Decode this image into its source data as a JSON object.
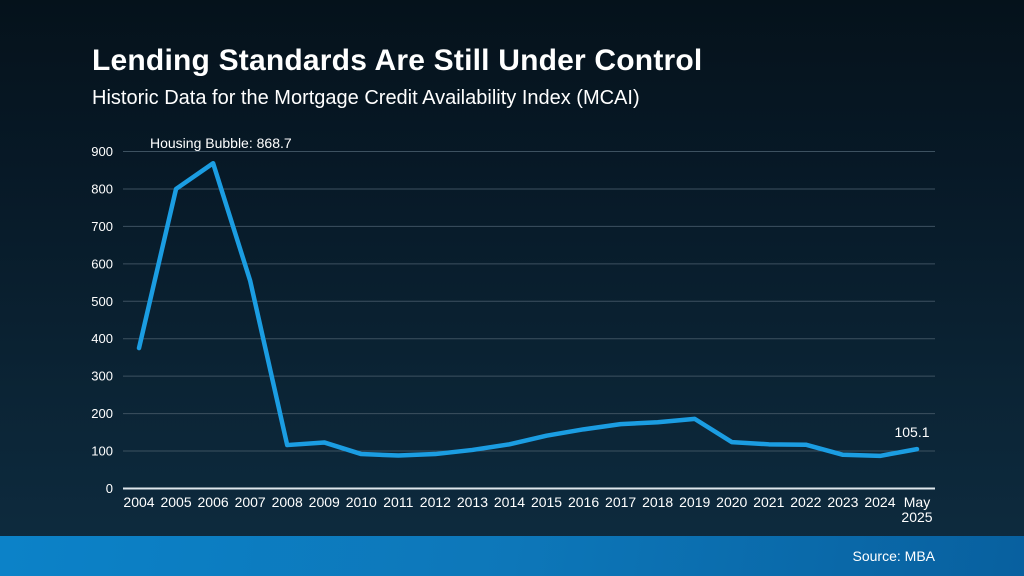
{
  "page": {
    "title": "Lending Standards Are Still Under Control",
    "subtitle": "Historic Data for the Mortgage Credit Availability Index (MCAI)",
    "source": "Source: MBA"
  },
  "chart_data": {
    "type": "line",
    "title": "Lending Standards Are Still Under Control",
    "subtitle": "Historic Data for the Mortgage Credit Availability Index (MCAI)",
    "series_name": "Mortgage Credit Availability Index (MCAI)",
    "categories": [
      "2004",
      "2005",
      "2006",
      "2007",
      "2008",
      "2009",
      "2010",
      "2011",
      "2012",
      "2013",
      "2014",
      "2015",
      "2016",
      "2017",
      "2018",
      "2019",
      "2020",
      "2021",
      "2022",
      "2023",
      "2024",
      "May 2025"
    ],
    "values": [
      375,
      800,
      868.7,
      555,
      116,
      123,
      92,
      88,
      92,
      103,
      118,
      141,
      158,
      172,
      177,
      186,
      124,
      118,
      117,
      90,
      87,
      105.1
    ],
    "ylim": [
      0,
      900
    ],
    "yticks": [
      0,
      100,
      200,
      300,
      400,
      500,
      600,
      700,
      800,
      900
    ],
    "grid": "horizontal",
    "legend": "none",
    "line_color": "#1b9de2",
    "annotations": [
      {
        "text": "Housing Bubble: 868.7",
        "x_category": "2006",
        "value": 868.7
      },
      {
        "text": "105.1",
        "x_category": "May 2025",
        "value": 105.1
      }
    ]
  }
}
